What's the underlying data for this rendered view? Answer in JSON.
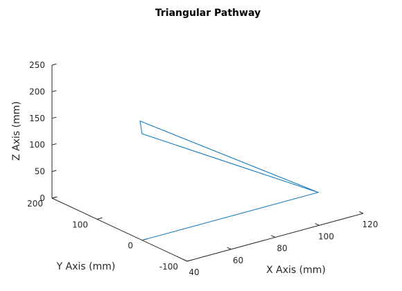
{
  "chart_data": {
    "type": "line3d",
    "title": "Triangular Pathway",
    "xlabel": "X Axis (mm)",
    "ylabel": "Y Axis (mm)",
    "zlabel": "Z Axis (mm)",
    "xlim": [
      40,
      120
    ],
    "ylim": [
      -100,
      200
    ],
    "zlim": [
      0,
      250
    ],
    "xticks": [
      "40",
      "60",
      "80",
      "100",
      "120"
    ],
    "yticks": [
      "-100",
      "0",
      "100",
      "200"
    ],
    "zticks": [
      "0",
      "50",
      "100",
      "150",
      "200",
      "250"
    ],
    "grid": false,
    "series": [
      {
        "color": "#0072BD",
        "points": [
          {
            "x": 40,
            "y": 0,
            "z": 0
          },
          {
            "x": 120,
            "y": 0,
            "z": 0
          },
          {
            "x": 80,
            "y": 200,
            "z": 100
          },
          {
            "x": 40,
            "y": 0,
            "z": 200
          },
          {
            "x": 120,
            "y": 0,
            "z": 0
          }
        ]
      }
    ]
  }
}
